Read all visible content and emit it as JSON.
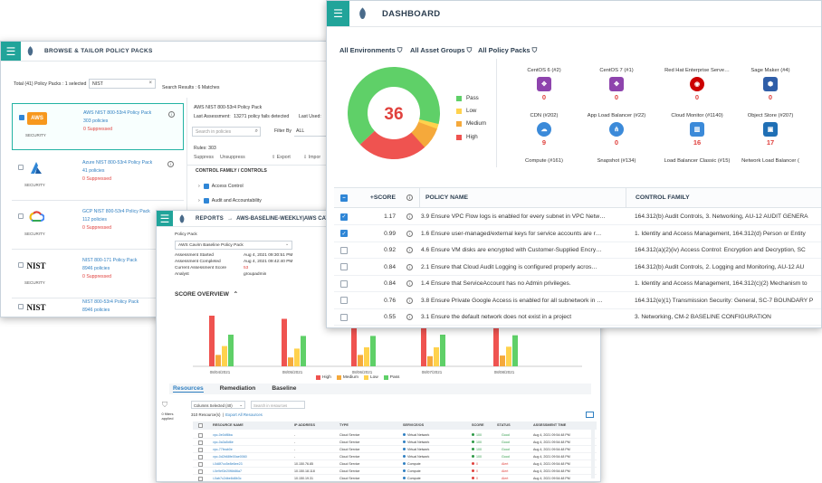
{
  "policy_packs_window": {
    "title": "BROWSE & TAILOR POLICY PACKS",
    "total_label": "Total (41) Policy Packs : 1 selected",
    "search_value": "NIST",
    "search_results": "Search Results : 6 Matches",
    "packs": [
      {
        "logo": "AWS",
        "security": "SECURITY",
        "name": "AWS NIST 800-53r4 Policy Pack",
        "count": "303 policies",
        "suppressed": "0 Suppressed"
      },
      {
        "logo": "Azure",
        "security": "SECURITY",
        "name": "Azure NIST 800-53r4 Policy Pack",
        "count": "41 policies",
        "suppressed": "0 Suppressed"
      },
      {
        "logo": "GCP",
        "security": "SECURITY",
        "name": "GCP NIST 800-53r4 Policy Pack",
        "count": "112 policies",
        "suppressed": "0 Suppressed"
      },
      {
        "logo": "NIST",
        "security": "SECURITY",
        "name": "NIST 800-171 Policy Pack",
        "count": "8946 policies",
        "suppressed": "0 Suppressed"
      },
      {
        "logo": "NIST",
        "security": "",
        "name": "NIST 800-53r4 Policy Pack",
        "count": "8946 policies",
        "suppressed": ""
      }
    ],
    "detail": {
      "name": "AWS NIST 800-53r4 Policy Pack",
      "last_assessment": "Last Assessment:",
      "fails": "13271 policy fails detected",
      "last_used": "Last Used:",
      "search_placeholder": "Search in policies",
      "filter_by": "Filter By",
      "filter_value": "ALL",
      "rules": "Rules:  303",
      "suppress": "Suppress",
      "unsuppress": "Unsuppress",
      "export": "Export",
      "import": "Impor",
      "section": "CONTROL FAMILY / CONTROLS",
      "controls": [
        "Access Control",
        "Audit and Accountability"
      ]
    }
  },
  "reports_window": {
    "title": "REPORTS",
    "crumb": "AWS-BASELINE-WEEKLY|AWS CAVIRN",
    "policy_pack_label": "Policy Pack",
    "policy_pack_value": "AWS Cavirn Baseline Policy Pack",
    "fields": [
      {
        "k": "Assessment Started",
        "v": "Aug 4, 2021 09:30:51 PM"
      },
      {
        "k": "Assessment Completed",
        "v": "Aug 4, 2021 09:42:40 PM"
      },
      {
        "k": "Current Assessment Score",
        "v": "53"
      },
      {
        "k": "Analyst",
        "v": "groupadmin"
      }
    ],
    "score_overview": "SCORE OVERVIEW",
    "dates": [
      "08/04/2021",
      "08/05/2021",
      "08/06/2021",
      "08/07/2021",
      "08/08/2021"
    ],
    "legend": [
      "High",
      "Medium",
      "Low",
      "Pass"
    ],
    "tabs": [
      "Resources",
      "Remediation",
      "Baseline"
    ],
    "columns_selected": "Columns Selected (40)",
    "search_resources": "Search in resources",
    "resource_count": "310 Resource(s)",
    "export_all": "Export All Resources",
    "filters_applied": "0 filters applied",
    "table_headers": [
      "RESOURCE NAME",
      "IP ADDRESS",
      "TYPE",
      "SERVICE/OS",
      "SCORE",
      "STATUS",
      "ASSESSMENT TIME"
    ],
    "rows": [
      {
        "name": "vpc-0e0df8ba",
        "ip": "-",
        "type": "Cloud Service",
        "svc": "Virtual Network",
        "score": "100",
        "status": "Good",
        "time": "Aug 4, 2021 09:54:48 PM"
      },
      {
        "name": "vpc-0a3a5d6e",
        "ip": "-",
        "type": "Cloud Service",
        "svc": "Virtual Network",
        "score": "100",
        "status": "Good",
        "time": "Aug 4, 2021 09:54:48 PM"
      },
      {
        "name": "vpc-77feab0e",
        "ip": "-",
        "type": "Cloud Service",
        "svc": "Virtual Network",
        "score": "100",
        "status": "Good",
        "time": "Aug 4, 2021 09:54:48 PM"
      },
      {
        "name": "vpc-0d2b68fe00ae0060",
        "ip": "-",
        "type": "Cloud Service",
        "svc": "Virtual Network",
        "score": "100",
        "status": "Good",
        "time": "Aug 4, 2021 09:54:48 PM"
      },
      {
        "name": "i-0d8f7cc5e8e6ee23",
        "ip": "10.150.76.85",
        "type": "Cloud Service",
        "svc": "Compute",
        "score": "0",
        "status": "Alert",
        "time": "Aug 4, 2021 09:54:48 PM"
      },
      {
        "name": "i-0e9ef3e20f6b86a7",
        "ip": "10.150.18.118",
        "type": "Cloud Service",
        "svc": "Compute",
        "score": "0",
        "status": "Alert",
        "time": "Aug 4, 2021 09:54:48 PM"
      },
      {
        "name": "i-0ab7c2dbe8d8b3c",
        "ip": "10.150.19.31",
        "type": "Cloud Service",
        "svc": "Compute",
        "score": "0",
        "status": "Alert",
        "time": "Aug 4, 2021 09:54:48 PM"
      }
    ]
  },
  "dashboard_window": {
    "title": "DASHBOARD",
    "filters": [
      "All Environments",
      "All Asset Groups",
      "All Policy Packs"
    ],
    "donut_center": "36",
    "donut_legend": [
      "Pass",
      "Low",
      "Medium",
      "High"
    ],
    "services": [
      {
        "name": "CentOS 6 (#2)",
        "count": "0",
        "color": "#8e44ad"
      },
      {
        "name": "CentOS 7 (#1)",
        "count": "0",
        "color": "#8e44ad"
      },
      {
        "name": "Red Hat Enterprise Serve…",
        "count": "0",
        "color": "#cc0000"
      },
      {
        "name": "Sage Maker (#4)",
        "count": "0",
        "color": "#2f5ea8"
      },
      {
        "name": "CDN (#202)",
        "count": "9",
        "color": "#3b8ad9"
      },
      {
        "name": "App Load Balancer (#22)",
        "count": "0",
        "color": "#3b8ad9"
      },
      {
        "name": "Cloud Monitor (#1140)",
        "count": "16",
        "color": "#3b8ad9"
      },
      {
        "name": "Object Store (#207)",
        "count": "17",
        "color": "#1f6fb5"
      },
      {
        "name": "Compute (#161)",
        "count": "",
        "color": ""
      },
      {
        "name": "Snapshot (#134)",
        "count": "",
        "color": ""
      },
      {
        "name": "Load Balancer Classic (#15)",
        "count": "",
        "color": ""
      },
      {
        "name": "Network Load Balancer (",
        "count": "",
        "color": ""
      }
    ],
    "table_headers": {
      "score": "+SCORE",
      "policy": "POLICY NAME",
      "family": "CONTROL FAMILY"
    },
    "rows": [
      {
        "checked": true,
        "score": "1.17",
        "policy": "3.9 Ensure VPC Flow logs is enabled for every subnet in VPC Netw…",
        "family": "164.312(b) Audit Controls, 3. Networking, AU-12 AUDIT GENERA"
      },
      {
        "checked": true,
        "score": "0.99",
        "policy": "1.6 Ensure user-managed/external keys for service accounts are r…",
        "family": "1. Identity and Access Management, 164.312(d) Person or Entity"
      },
      {
        "checked": false,
        "score": "0.92",
        "policy": "4.6 Ensure VM disks are encrypted with Customer-Supplied Encry…",
        "family": "164.312(a)(2)(iv) Access Control: Encryption and Decryption, SC"
      },
      {
        "checked": false,
        "score": "0.84",
        "policy": "2.1 Ensure that Cloud Audit Logging is configured properly acros…",
        "family": "164.312(b) Audit Controls, 2. Logging and Monitoring, AU-12 AU"
      },
      {
        "checked": false,
        "score": "0.84",
        "policy": "1.4 Ensure that ServiceAccount has no Admin privileges.",
        "family": "1. Identity and Access Management, 164.312(c)(2) Mechanism to"
      },
      {
        "checked": false,
        "score": "0.76",
        "policy": "3.8 Ensure Private Google Access is enabled for all subnetwork in …",
        "family": "164.312(e)(1) Transmission Security: General, SC-7 BOUNDARY P"
      },
      {
        "checked": false,
        "score": "0.55",
        "policy": "3.1 Ensure the default network does not exist in a project",
        "family": "3. Networking, CM-2 BASELINE CONFIGURATION"
      }
    ]
  },
  "colors": {
    "teal": "#21a49a",
    "pass": "#5fd068",
    "low": "#ffd24d",
    "medium": "#f5a93b",
    "high": "#ef5350",
    "link": "#2f7fc1"
  }
}
